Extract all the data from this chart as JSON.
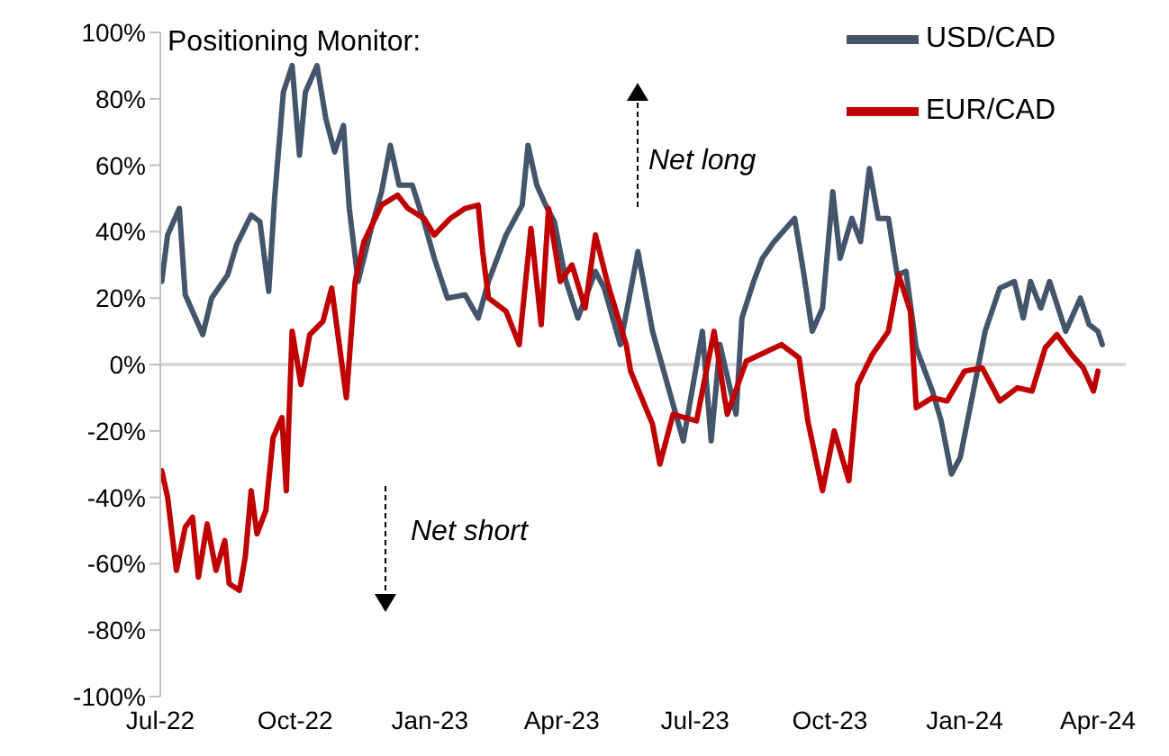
{
  "chart_data": {
    "type": "line",
    "title": "Positioning Monitor:",
    "annotations": [
      "Net long",
      "Net short"
    ],
    "xlim": [
      "2022-07-01",
      "2024-04-20"
    ],
    "xticks": [
      {
        "value": "2022-07-01",
        "label": "Jul-22"
      },
      {
        "value": "2022-10-01",
        "label": "Oct-22"
      },
      {
        "value": "2023-01-01",
        "label": "Jan-23"
      },
      {
        "value": "2023-04-01",
        "label": "Apr-23"
      },
      {
        "value": "2023-07-01",
        "label": "Jul-23"
      },
      {
        "value": "2023-10-01",
        "label": "Oct-23"
      },
      {
        "value": "2024-01-01",
        "label": "Jan-24"
      },
      {
        "value": "2024-04-01",
        "label": "Apr-24"
      }
    ],
    "ylim": [
      -100,
      100
    ],
    "yticks": [
      {
        "value": -100,
        "label": "-100%"
      },
      {
        "value": -80,
        "label": "-80%"
      },
      {
        "value": -60,
        "label": "-60%"
      },
      {
        "value": -40,
        "label": "-40%"
      },
      {
        "value": -20,
        "label": "-20%"
      },
      {
        "value": 0,
        "label": "0%"
      },
      {
        "value": 20,
        "label": "20%"
      },
      {
        "value": 40,
        "label": "40%"
      },
      {
        "value": 60,
        "label": "60%"
      },
      {
        "value": 80,
        "label": "80%"
      },
      {
        "value": 100,
        "label": "100%"
      }
    ],
    "ref_lines": [
      {
        "axis": "y",
        "value": 0,
        "color": "#d9d9d9"
      }
    ],
    "legend": "top right",
    "marker": "none",
    "line_style": "solid",
    "series": [
      {
        "name": "USD/CAD",
        "color": "#44546a",
        "x": [
          "2022-07-02",
          "2022-07-06",
          "2022-07-14",
          "2022-07-18",
          "2022-07-30",
          "2022-08-05",
          "2022-08-16",
          "2022-08-22",
          "2022-09-01",
          "2022-09-07",
          "2022-09-13",
          "2022-09-17",
          "2022-09-23",
          "2022-09-29",
          "2022-10-04",
          "2022-10-08",
          "2022-10-16",
          "2022-10-22",
          "2022-10-28",
          "2022-11-03",
          "2022-11-07",
          "2022-11-13",
          "2022-11-22",
          "2022-11-29",
          "2022-12-05",
          "2022-12-11",
          "2022-12-20",
          "2022-12-28",
          "2023-01-04",
          "2023-01-13",
          "2023-01-25",
          "2023-02-03",
          "2023-02-10",
          "2023-02-22",
          "2023-03-05",
          "2023-03-09",
          "2023-03-15",
          "2023-03-21",
          "2023-03-27",
          "2023-04-04",
          "2023-04-12",
          "2023-04-24",
          "2023-04-30",
          "2023-05-11",
          "2023-05-23",
          "2023-06-02",
          "2023-06-23",
          "2023-07-06",
          "2023-07-12",
          "2023-07-18",
          "2023-07-29",
          "2023-08-02",
          "2023-08-10",
          "2023-08-16",
          "2023-08-24",
          "2023-09-01",
          "2023-09-07",
          "2023-09-13",
          "2023-09-19",
          "2023-09-26",
          "2023-10-03",
          "2023-10-08",
          "2023-10-16",
          "2023-10-22",
          "2023-10-28",
          "2023-11-03",
          "2023-11-10",
          "2023-11-16",
          "2023-11-22",
          "2023-11-29",
          "2023-12-10",
          "2023-12-16",
          "2023-12-23",
          "2023-12-29",
          "2024-01-07",
          "2024-01-15",
          "2024-01-25",
          "2024-02-04",
          "2024-02-10",
          "2024-02-15",
          "2024-02-22",
          "2024-02-28",
          "2024-03-10",
          "2024-03-20",
          "2024-03-26",
          "2024-04-01",
          "2024-04-04"
        ],
        "values": [
          25,
          39,
          47,
          21,
          9,
          20,
          27,
          36,
          45,
          43,
          22,
          50,
          82,
          90,
          63,
          82,
          90,
          74,
          64,
          72,
          47,
          25,
          41,
          52,
          66,
          54,
          54,
          43,
          32,
          20,
          21,
          14,
          25,
          39,
          48,
          66,
          54,
          48,
          43,
          25,
          14,
          28,
          23,
          6,
          34,
          10,
          -23,
          10,
          -23,
          6,
          -15,
          14,
          25,
          32,
          37,
          41,
          44,
          28,
          10,
          17,
          52,
          32,
          44,
          37,
          59,
          44,
          44,
          27,
          28,
          5,
          -8,
          -17,
          -33,
          -28,
          -8,
          10,
          23,
          25,
          14,
          25,
          17,
          25,
          10,
          20,
          12,
          10,
          6
        ]
      },
      {
        "name": "EUR/CAD",
        "color": "#c00000",
        "x": [
          "2022-07-02",
          "2022-07-06",
          "2022-07-12",
          "2022-07-18",
          "2022-07-23",
          "2022-07-27",
          "2022-08-02",
          "2022-08-08",
          "2022-08-14",
          "2022-08-17",
          "2022-08-24",
          "2022-08-28",
          "2022-09-01",
          "2022-09-05",
          "2022-09-11",
          "2022-09-16",
          "2022-09-22",
          "2022-09-25",
          "2022-09-29",
          "2022-10-05",
          "2022-10-11",
          "2022-10-20",
          "2022-10-26",
          "2022-11-05",
          "2022-11-11",
          "2022-11-17",
          "2022-11-29",
          "2022-12-10",
          "2022-12-17",
          "2022-12-28",
          "2023-01-04",
          "2023-01-15",
          "2023-01-25",
          "2023-02-03",
          "2023-02-06",
          "2023-02-10",
          "2023-02-22",
          "2023-03-03",
          "2023-03-11",
          "2023-03-18",
          "2023-03-23",
          "2023-03-31",
          "2023-04-08",
          "2023-04-17",
          "2023-04-24",
          "2023-05-02",
          "2023-05-15",
          "2023-05-18",
          "2023-06-02",
          "2023-06-07",
          "2023-06-16",
          "2023-07-02",
          "2023-07-14",
          "2023-07-23",
          "2023-08-05",
          "2023-08-29",
          "2023-09-10",
          "2023-09-16",
          "2023-09-26",
          "2023-10-04",
          "2023-10-14",
          "2023-10-20",
          "2023-10-30",
          "2023-11-10",
          "2023-11-17",
          "2023-11-25",
          "2023-11-29",
          "2023-12-10",
          "2023-12-20",
          "2024-01-01",
          "2024-01-13",
          "2024-01-25",
          "2024-02-06",
          "2024-02-16",
          "2024-02-25",
          "2024-03-04",
          "2024-03-14",
          "2024-03-22",
          "2024-03-29",
          "2024-04-01"
        ],
        "values": [
          -32,
          -40,
          -62,
          -49,
          -46,
          -64,
          -48,
          -62,
          -53,
          -66,
          -68,
          -58,
          -38,
          -51,
          -44,
          -22,
          -16,
          -38,
          10,
          -6,
          9,
          13,
          23,
          -10,
          25,
          37,
          48,
          51,
          47,
          44,
          39,
          44,
          47,
          48,
          34,
          20,
          16,
          6,
          41,
          12,
          47,
          25,
          30,
          17,
          39,
          25,
          6,
          -2,
          -18,
          -30,
          -15,
          -17,
          10,
          -15,
          1,
          6,
          2,
          -17,
          -38,
          -20,
          -35,
          -6,
          3,
          10,
          27,
          16,
          -13,
          -10,
          -11,
          -2,
          -1,
          -11,
          -7,
          -8,
          5,
          9,
          3,
          -1,
          -8,
          -2
        ]
      }
    ]
  }
}
